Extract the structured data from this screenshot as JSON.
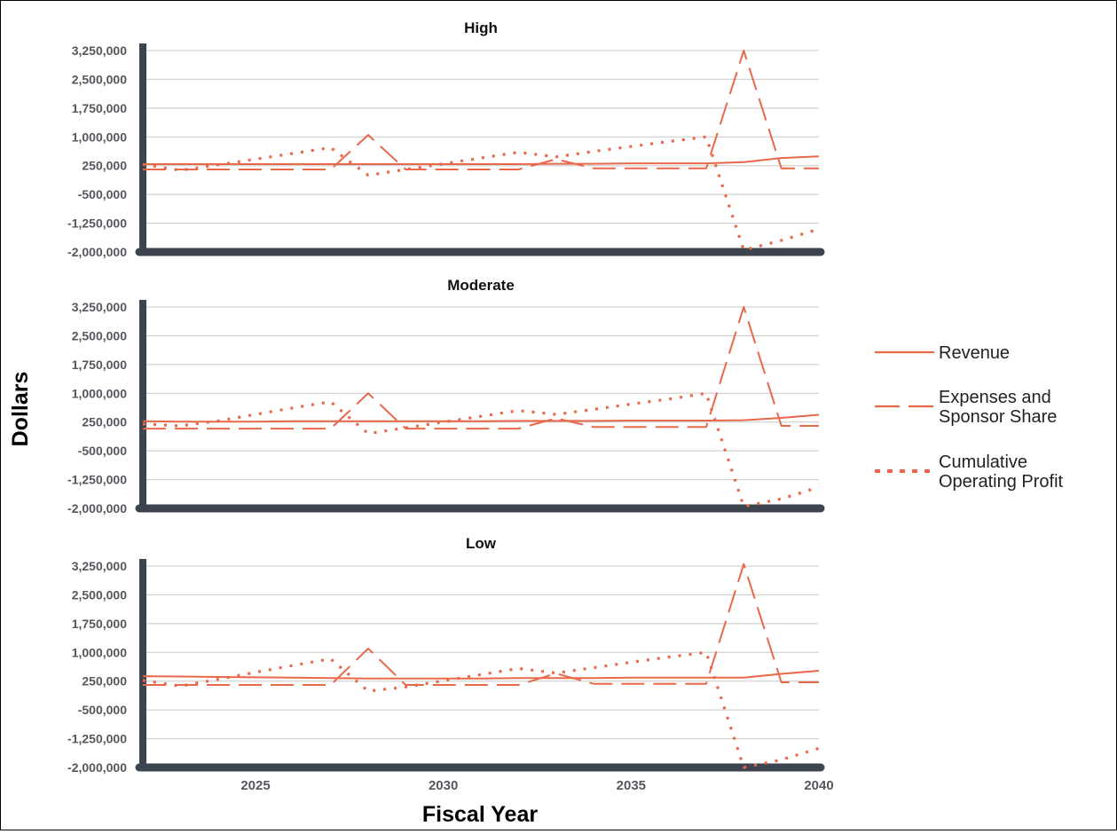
{
  "chart_data": {
    "type": "line",
    "xlabel": "Fiscal Year",
    "ylabel": "Dollars",
    "xlim": [
      2022,
      2040
    ],
    "ylim": [
      -2000000,
      3250000
    ],
    "x_ticks": [
      2025,
      2030,
      2035,
      2040
    ],
    "x_tick_labels": [
      "2025",
      "2030",
      "2035",
      "2040"
    ],
    "y_ticks": [
      -2000000,
      -1250000,
      -500000,
      250000,
      1000000,
      1750000,
      2500000,
      3250000
    ],
    "y_tick_labels": [
      "-2,000,000",
      "-1,250,000",
      "-500,000",
      "250,000",
      "1,000,000",
      "1,750,000",
      "2,500,000",
      "3,250,000"
    ],
    "grid": true,
    "legend_position": "right",
    "colors": {
      "series": "#e8684a",
      "axis": "#3c4450",
      "grid": "#c8c8c8"
    },
    "legend": [
      {
        "label_lines": [
          "Revenue"
        ],
        "style": "solid"
      },
      {
        "label_lines": [
          "Expenses and",
          "Sponsor Share"
        ],
        "style": "dashed"
      },
      {
        "label_lines": [
          "Cumulative",
          "Operating Profit"
        ],
        "style": "dotted"
      }
    ],
    "x": [
      2022,
      2023,
      2024,
      2025,
      2026,
      2027,
      2028,
      2029,
      2030,
      2031,
      2032,
      2033,
      2034,
      2035,
      2036,
      2037,
      2038,
      2039,
      2040
    ],
    "panels": [
      {
        "title": "High",
        "series": [
          {
            "name": "Revenue",
            "style": "solid",
            "values": [
              290000,
              290000,
              290000,
              290000,
              290000,
              290000,
              290000,
              290000,
              290000,
              290000,
              290000,
              300000,
              300000,
              310000,
              310000,
              310000,
              340000,
              450000,
              490000
            ]
          },
          {
            "name": "Expenses and Sponsor Share",
            "style": "dashed",
            "values": [
              150000,
              150000,
              150000,
              150000,
              150000,
              150000,
              1050000,
              150000,
              150000,
              150000,
              150000,
              420000,
              180000,
              180000,
              180000,
              180000,
              3250000,
              180000,
              180000
            ]
          },
          {
            "name": "Cumulative Operating Profit",
            "style": "dotted",
            "values": [
              280000,
              130000,
              270000,
              420000,
              570000,
              720000,
              0,
              150000,
              300000,
              450000,
              600000,
              480000,
              620000,
              750000,
              880000,
              1000000,
              -1950000,
              -1700000,
              -1400000
            ]
          }
        ]
      },
      {
        "title": "Moderate",
        "series": [
          {
            "name": "Revenue",
            "style": "solid",
            "values": [
              270000,
              260000,
              260000,
              260000,
              270000,
              270000,
              270000,
              270000,
              270000,
              270000,
              280000,
              280000,
              280000,
              290000,
              290000,
              290000,
              300000,
              360000,
              440000
            ]
          },
          {
            "name": "Expenses and Sponsor Share",
            "style": "dashed",
            "values": [
              80000,
              80000,
              80000,
              80000,
              80000,
              80000,
              1000000,
              80000,
              80000,
              80000,
              80000,
              350000,
              120000,
              120000,
              120000,
              120000,
              3250000,
              150000,
              150000
            ]
          },
          {
            "name": "Cumulative Operating Profit",
            "style": "dotted",
            "values": [
              200000,
              150000,
              280000,
              450000,
              620000,
              780000,
              -50000,
              100000,
              250000,
              400000,
              550000,
              450000,
              580000,
              720000,
              850000,
              1000000,
              -1950000,
              -1750000,
              -1450000
            ]
          }
        ]
      },
      {
        "title": "Low",
        "series": [
          {
            "name": "Revenue",
            "style": "solid",
            "values": [
              380000,
              370000,
              360000,
              350000,
              340000,
              330000,
              320000,
              320000,
              320000,
              320000,
              330000,
              330000,
              330000,
              340000,
              340000,
              340000,
              340000,
              440000,
              520000
            ]
          },
          {
            "name": "Expenses and Sponsor Share",
            "style": "dashed",
            "values": [
              150000,
              150000,
              150000,
              150000,
              150000,
              150000,
              1100000,
              150000,
              150000,
              150000,
              150000,
              450000,
              180000,
              180000,
              180000,
              180000,
              3300000,
              220000,
              220000
            ]
          },
          {
            "name": "Cumulative Operating Profit",
            "style": "dotted",
            "values": [
              270000,
              120000,
              300000,
              480000,
              660000,
              830000,
              -10000,
              100000,
              260000,
              420000,
              580000,
              460000,
              600000,
              740000,
              880000,
              1000000,
              -2000000,
              -1800000,
              -1500000
            ]
          }
        ]
      }
    ]
  }
}
